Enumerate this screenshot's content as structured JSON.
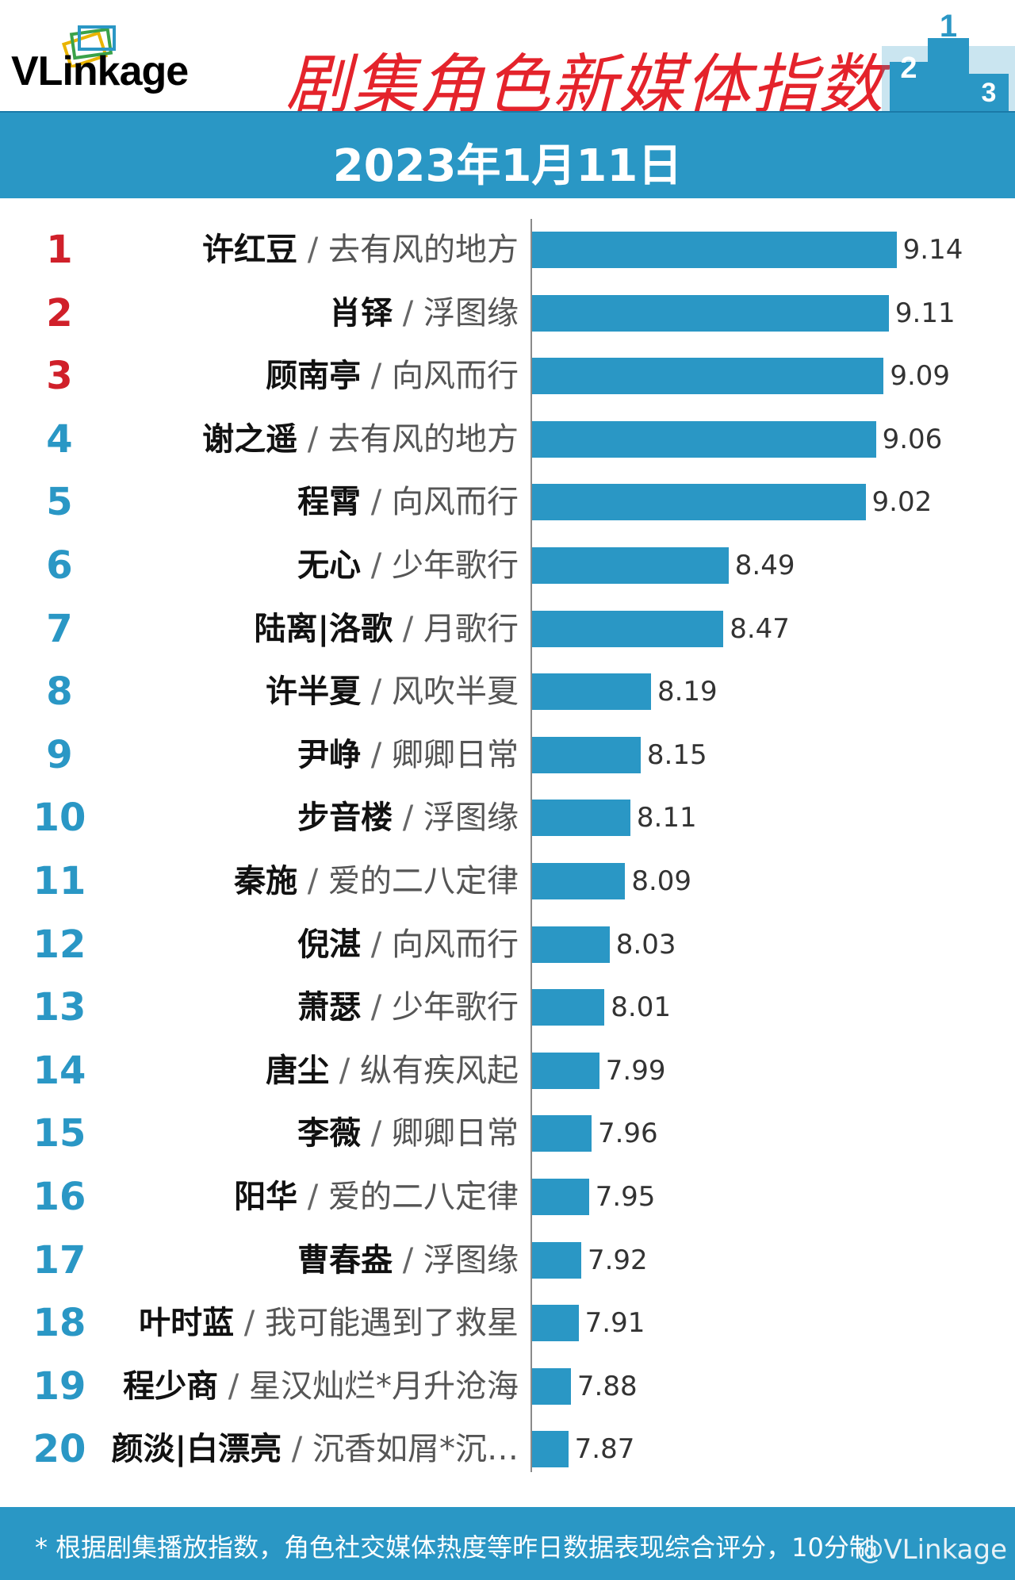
{
  "header": {
    "logo_text": "VLinkage",
    "title": "剧集角色新媒体指数",
    "date": "2023年1月11日"
  },
  "chart_data": {
    "type": "bar",
    "orientation": "horizontal",
    "rows": [
      {
        "rank": "1",
        "name": "许红豆",
        "show": "去有风的地方",
        "value": 9.14
      },
      {
        "rank": "2",
        "name": "肖铎",
        "show": "浮图缘",
        "value": 9.11
      },
      {
        "rank": "3",
        "name": "顾南亭",
        "show": "向风而行",
        "value": 9.09
      },
      {
        "rank": "4",
        "name": "谢之遥",
        "show": "去有风的地方",
        "value": 9.06
      },
      {
        "rank": "5",
        "name": "程霄",
        "show": "向风而行",
        "value": 9.02
      },
      {
        "rank": "6",
        "name": "无心",
        "show": "少年歌行",
        "value": 8.49
      },
      {
        "rank": "7",
        "name": "陆离|洛歌",
        "show": "月歌行",
        "value": 8.47
      },
      {
        "rank": "8",
        "name": "许半夏",
        "show": "风吹半夏",
        "value": 8.19
      },
      {
        "rank": "9",
        "name": "尹峥",
        "show": "卿卿日常",
        "value": 8.15
      },
      {
        "rank": "10",
        "name": "步音楼",
        "show": "浮图缘",
        "value": 8.11
      },
      {
        "rank": "11",
        "name": "秦施",
        "show": "爱的二八定律",
        "value": 8.09
      },
      {
        "rank": "12",
        "name": "倪湛",
        "show": "向风而行",
        "value": 8.03
      },
      {
        "rank": "13",
        "name": "萧瑟",
        "show": "少年歌行",
        "value": 8.01
      },
      {
        "rank": "14",
        "name": "唐尘",
        "show": "纵有疾风起",
        "value": 7.99
      },
      {
        "rank": "15",
        "name": "李薇",
        "show": "卿卿日常",
        "value": 7.96
      },
      {
        "rank": "16",
        "name": "阳华",
        "show": "爱的二八定律",
        "value": 7.95
      },
      {
        "rank": "17",
        "name": "曹春盎",
        "show": "浮图缘",
        "value": 7.92
      },
      {
        "rank": "18",
        "name": "叶时蓝",
        "show": "我可能遇到了救星",
        "value": 7.91
      },
      {
        "rank": "19",
        "name": "程少商",
        "show": "星汉灿烂*月升沧海",
        "value": 7.88
      },
      {
        "rank": "20",
        "name": "颜淡|白漂亮",
        "show": "沉香如屑*沉…",
        "value": 7.87
      }
    ],
    "separator": " / ",
    "grid": false,
    "bar_color": "#2a97c5",
    "rank_color_top3": "#d0202a",
    "rank_color_rest": "#2a97c5"
  },
  "footer": {
    "note": "* 根据剧集播放指数，角色社交媒体热度等昨日数据表现综合评分，10分制",
    "watermark": "@VLinkage"
  }
}
